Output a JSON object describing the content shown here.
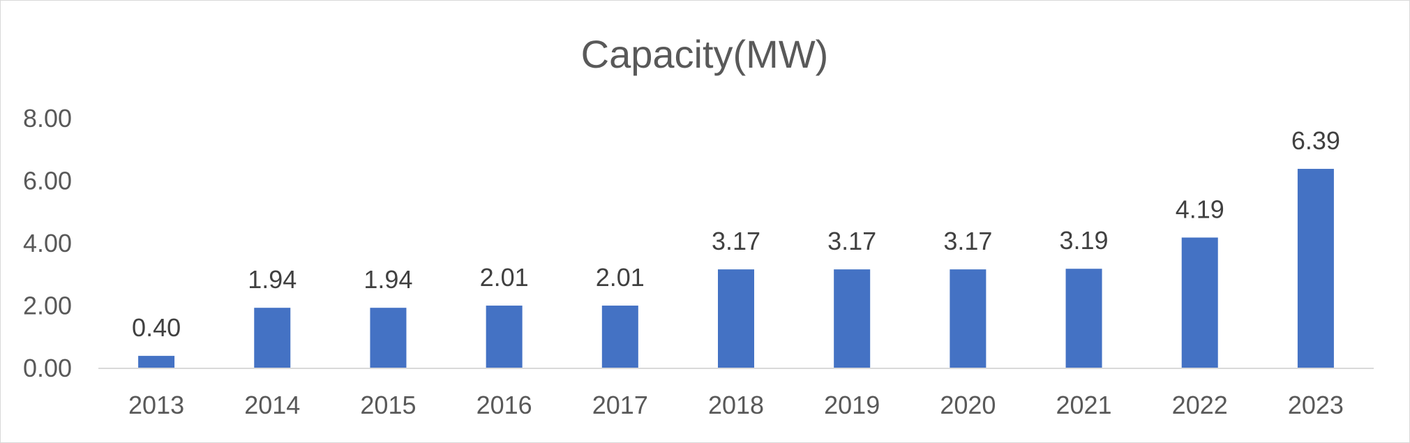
{
  "chart_data": {
    "type": "bar",
    "title": "Capacity(MW)",
    "xlabel": "",
    "ylabel": "",
    "categories": [
      "2013",
      "2014",
      "2015",
      "2016",
      "2017",
      "2018",
      "2019",
      "2020",
      "2021",
      "2022",
      "2023"
    ],
    "series": [
      {
        "values": [
          0.4,
          1.94,
          1.94,
          2.01,
          2.01,
          3.17,
          3.17,
          3.17,
          3.19,
          4.19,
          6.39
        ],
        "data_labels": [
          "0.40",
          "1.94",
          "1.94",
          "2.01",
          "2.01",
          "3.17",
          "3.17",
          "3.17",
          "3.19",
          "4.19",
          "6.39"
        ],
        "color": "#4472c4"
      }
    ],
    "ylim": [
      0,
      8
    ],
    "y_ticks": [
      0,
      2,
      4,
      6,
      8
    ],
    "y_tick_labels": [
      "0.00",
      "2.00",
      "4.00",
      "6.00",
      "8.00"
    ],
    "grid": false,
    "legend": "none"
  },
  "colors": {
    "bar": "#4472c4",
    "axis_line": "#d9d9d9",
    "text": "#595959",
    "data_label": "#404040",
    "border": "#d9d9d9"
  }
}
